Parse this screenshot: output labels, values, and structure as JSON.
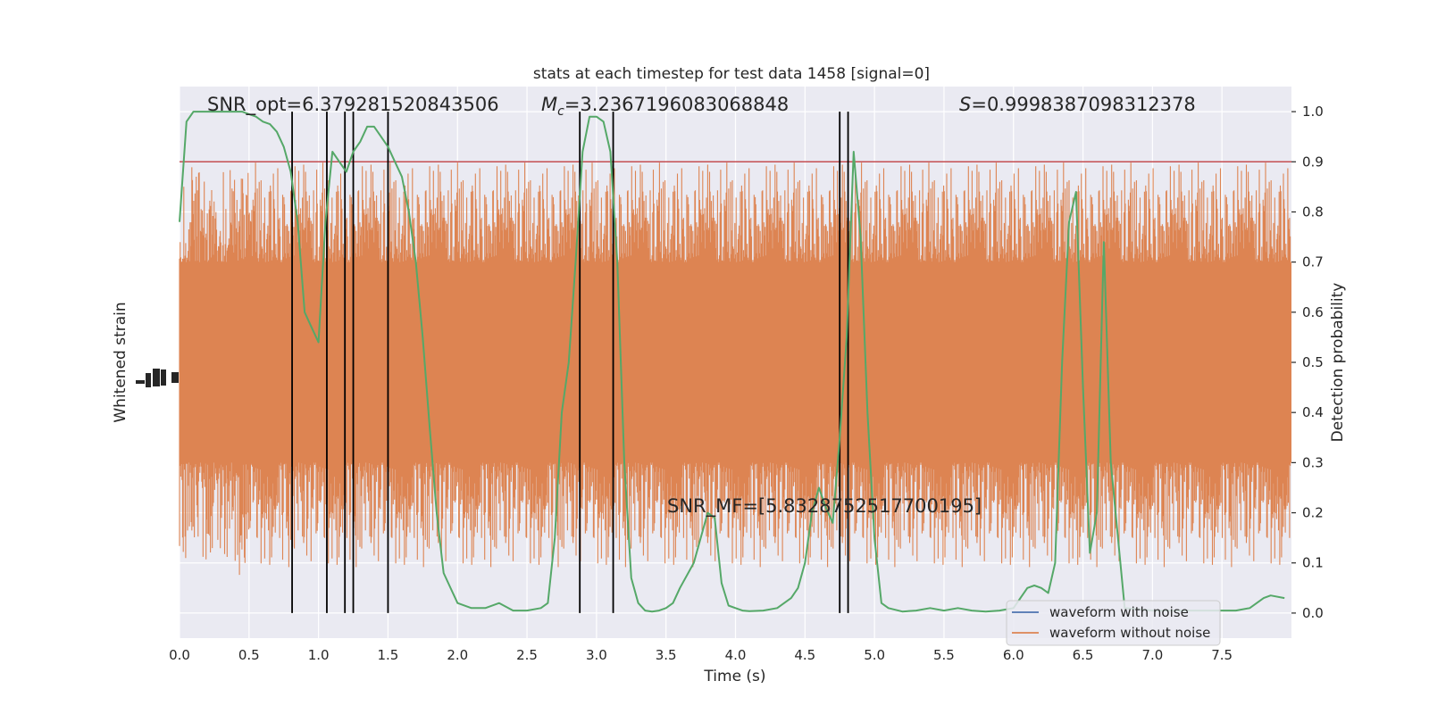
{
  "chart_data": {
    "type": "line",
    "title": "stats at each timestep for test data 1458 [signal=0]",
    "xlabel": "Time (s)",
    "ylabel_left": "Whitened strain",
    "ylabel_right": "Detection probability",
    "xlim": [
      0.0,
      8.0
    ],
    "ylim_right": [
      -0.05,
      1.05
    ],
    "x_ticks": [
      "0.0",
      "0.5",
      "1.0",
      "1.5",
      "2.0",
      "2.5",
      "3.0",
      "3.5",
      "4.0",
      "4.5",
      "5.0",
      "5.5",
      "6.0",
      "6.5",
      "7.0",
      "7.5"
    ],
    "x_tick_values": [
      0.0,
      0.5,
      1.0,
      1.5,
      2.0,
      2.5,
      3.0,
      3.5,
      4.0,
      4.5,
      5.0,
      5.5,
      6.0,
      6.5,
      7.0,
      7.5
    ],
    "y_ticks_right": [
      "0.0",
      "0.1",
      "0.2",
      "0.3",
      "0.4",
      "0.5",
      "0.6",
      "0.7",
      "0.8",
      "0.9",
      "1.0"
    ],
    "y_tick_values_right": [
      0.0,
      0.1,
      0.2,
      0.3,
      0.4,
      0.5,
      0.6,
      0.7,
      0.8,
      0.9,
      1.0
    ],
    "grid": true,
    "legend_position": "lower-right",
    "threshold": 0.9,
    "annotations": {
      "snr_opt": "SNR_opt=6.379281520843506",
      "mc_symbol": "M",
      "mc_sub": "c",
      "mc_value": "=3.2367196083068848",
      "s_symbol": "S",
      "s_value": "=0.9998387098312378",
      "snr_mf": "SNR_MF=[5.832875251770019​5]"
    },
    "vertical_lines": [
      0.81,
      1.06,
      1.19,
      1.25,
      1.5,
      2.88,
      3.12,
      4.75,
      4.81
    ],
    "strain_band": {
      "median": 0.49,
      "inner_low": 0.3,
      "inner_high": 0.7,
      "outer_low": 0.09,
      "outer_high": 0.9
    },
    "series": [
      {
        "name": "waveform with noise",
        "color": "#4c72b0",
        "role": "legend-only"
      },
      {
        "name": "waveform without noise",
        "color": "#dd8452",
        "role": "strain"
      },
      {
        "name": "",
        "color": "#55a868",
        "role": "detection-probability",
        "x": [
          0.0,
          0.05,
          0.1,
          0.15,
          0.2,
          0.25,
          0.3,
          0.35,
          0.4,
          0.45,
          0.5,
          0.55,
          0.6,
          0.65,
          0.7,
          0.75,
          0.8,
          0.85,
          0.9,
          0.95,
          1.0,
          1.05,
          1.1,
          1.15,
          1.2,
          1.25,
          1.3,
          1.35,
          1.4,
          1.45,
          1.5,
          1.55,
          1.6,
          1.65,
          1.7,
          1.75,
          1.8,
          1.85,
          1.9,
          2.0,
          2.1,
          2.2,
          2.3,
          2.4,
          2.5,
          2.6,
          2.65,
          2.7,
          2.75,
          2.8,
          2.85,
          2.9,
          2.95,
          3.0,
          3.05,
          3.1,
          3.15,
          3.2,
          3.25,
          3.3,
          3.35,
          3.4,
          3.45,
          3.5,
          3.55,
          3.6,
          3.7,
          3.8,
          3.85,
          3.9,
          3.95,
          4.0,
          4.05,
          4.1,
          4.2,
          4.3,
          4.4,
          4.45,
          4.5,
          4.55,
          4.6,
          4.65,
          4.7,
          4.75,
          4.8,
          4.85,
          4.9,
          4.95,
          5.0,
          5.05,
          5.1,
          5.2,
          5.3,
          5.4,
          5.5,
          5.6,
          5.7,
          5.8,
          5.9,
          6.0,
          6.1,
          6.15,
          6.2,
          6.25,
          6.3,
          6.35,
          6.4,
          6.45,
          6.5,
          6.55,
          6.6,
          6.65,
          6.7,
          6.8,
          7.0,
          7.2,
          7.4,
          7.6,
          7.7,
          7.75,
          7.8,
          7.85,
          7.95
        ],
        "values": [
          0.78,
          0.98,
          1.0,
          1.0,
          1.0,
          1.0,
          1.0,
          1.0,
          1.0,
          1.0,
          0.995,
          0.99,
          0.98,
          0.975,
          0.96,
          0.93,
          0.88,
          0.78,
          0.6,
          0.57,
          0.54,
          0.78,
          0.92,
          0.9,
          0.88,
          0.92,
          0.94,
          0.97,
          0.97,
          0.95,
          0.93,
          0.9,
          0.87,
          0.8,
          0.7,
          0.55,
          0.37,
          0.2,
          0.08,
          0.02,
          0.01,
          0.01,
          0.02,
          0.005,
          0.005,
          0.01,
          0.02,
          0.15,
          0.4,
          0.5,
          0.7,
          0.92,
          0.99,
          0.99,
          0.98,
          0.92,
          0.7,
          0.3,
          0.07,
          0.02,
          0.005,
          0.003,
          0.005,
          0.01,
          0.02,
          0.05,
          0.1,
          0.2,
          0.19,
          0.06,
          0.015,
          0.01,
          0.005,
          0.004,
          0.005,
          0.01,
          0.03,
          0.05,
          0.1,
          0.2,
          0.25,
          0.21,
          0.18,
          0.35,
          0.55,
          0.92,
          0.75,
          0.4,
          0.15,
          0.02,
          0.01,
          0.003,
          0.005,
          0.01,
          0.005,
          0.01,
          0.005,
          0.003,
          0.005,
          0.01,
          0.05,
          0.055,
          0.05,
          0.04,
          0.1,
          0.5,
          0.78,
          0.84,
          0.45,
          0.12,
          0.2,
          0.74,
          0.3,
          0.01,
          0.005,
          0.005,
          0.005,
          0.005,
          0.01,
          0.02,
          0.03,
          0.035,
          0.03
        ]
      }
    ]
  }
}
